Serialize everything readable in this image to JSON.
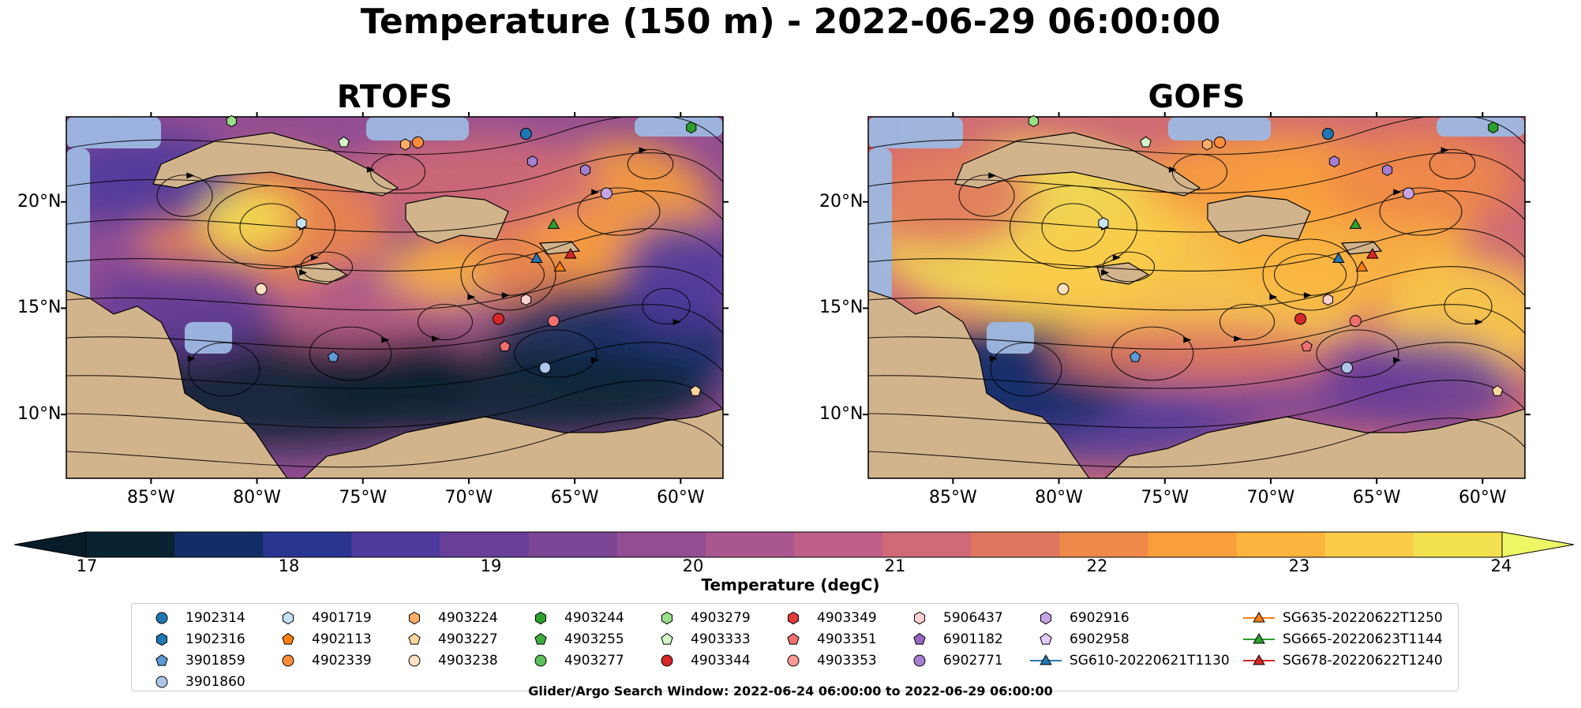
{
  "title": "Temperature (150 m) - 2022-06-29 06:00:00",
  "maps": [
    {
      "id": "rtofs",
      "title": "RTOFS"
    },
    {
      "id": "gofs",
      "title": "GOFS"
    }
  ],
  "axes": {
    "lat_labels": [
      "20°N",
      "15°N",
      "10°N"
    ],
    "lon_labels": [
      "85°W",
      "80°W",
      "75°W",
      "70°W",
      "65°W",
      "60°W"
    ],
    "lon_range": [
      -89,
      -58
    ],
    "lat_range": [
      7,
      24
    ]
  },
  "colorbar": {
    "label": "Temperature (degC)",
    "ticks": [
      "17",
      "18",
      "19",
      "20",
      "21",
      "22",
      "23",
      "24"
    ],
    "range": [
      17,
      24
    ],
    "colors": [
      "#0a2333",
      "#112f66",
      "#2a3590",
      "#4e3a9c",
      "#673e98",
      "#7c4595",
      "#934e93",
      "#a9578e",
      "#bd5f86",
      "#cf6a76",
      "#e0775f",
      "#ef8849",
      "#f89e3c",
      "#fbb43f",
      "#f9cb48",
      "#f3e04f"
    ],
    "extend_low": "#071b28",
    "extend_high": "#eef766"
  },
  "legend": {
    "items": [
      {
        "label": "1902314",
        "marker": "circle",
        "color": "#1f77b4"
      },
      {
        "label": "1902316",
        "marker": "hexagon",
        "color": "#1f77b4"
      },
      {
        "label": "3901859",
        "marker": "pentagon",
        "color": "#5b9bd5"
      },
      {
        "label": "3901860",
        "marker": "circle",
        "color": "#aec7e8"
      },
      {
        "label": "4901719",
        "marker": "hexagon",
        "color": "#c6e2f5"
      },
      {
        "label": "4902113",
        "marker": "pentagon",
        "color": "#ff7f0e"
      },
      {
        "label": "4902339",
        "marker": "circle",
        "color": "#ff8c3a"
      },
      {
        "label": "4903224",
        "marker": "hexagon",
        "color": "#ffad66"
      },
      {
        "label": "4903227",
        "marker": "pentagon",
        "color": "#ffd59e"
      },
      {
        "label": "4903238",
        "marker": "circle",
        "color": "#ffe0c2"
      },
      {
        "label": "4903244",
        "marker": "hexagon",
        "color": "#2ca02c"
      },
      {
        "label": "4903255",
        "marker": "pentagon",
        "color": "#3fae3f"
      },
      {
        "label": "4903277",
        "marker": "circle",
        "color": "#5cc05c"
      },
      {
        "label": "4903279",
        "marker": "hexagon",
        "color": "#98df8a"
      },
      {
        "label": "4903333",
        "marker": "pentagon",
        "color": "#d4f5c8"
      },
      {
        "label": "4903344",
        "marker": "circle",
        "color": "#d62728"
      },
      {
        "label": "4903349",
        "marker": "hexagon",
        "color": "#e03c3c"
      },
      {
        "label": "4903351",
        "marker": "pentagon",
        "color": "#f07070"
      },
      {
        "label": "4903353",
        "marker": "circle",
        "color": "#ff9896"
      },
      {
        "label": "5906437",
        "marker": "hexagon",
        "color": "#ffd0d0"
      },
      {
        "label": "6901182",
        "marker": "pentagon",
        "color": "#9467bd"
      },
      {
        "label": "6902771",
        "marker": "circle",
        "color": "#a57fd0"
      },
      {
        "label": "6902916",
        "marker": "hexagon",
        "color": "#c5a5e5"
      },
      {
        "label": "6902958",
        "marker": "pentagon",
        "color": "#e2cdf7"
      },
      {
        "label": "SG610-20220621T1130",
        "marker": "triangle-line",
        "color": "#1f77b4"
      },
      {
        "label": "SG635-20220622T1250",
        "marker": "triangle-line",
        "color": "#ff7f0e"
      },
      {
        "label": "SG665-20220623T1144",
        "marker": "triangle-line",
        "color": "#2ca02c"
      },
      {
        "label": "SG678-20220622T1240",
        "marker": "triangle-line",
        "color": "#d62728"
      }
    ]
  },
  "search_window": "Glider/Argo Search Window: 2022-06-24 06:00:00 to 2022-06-29 06:00:00",
  "map_colors": {
    "land": "#d2b48c",
    "shallow": "#9db8e2",
    "coast": "#000000",
    "rivers": "#9fb4cc"
  },
  "markers": {
    "argo_lonlat": [
      {
        "lon": -81.2,
        "lat": 23.8,
        "color": "#98df8a",
        "marker": "hexagon"
      },
      {
        "lon": -75.9,
        "lat": 22.8,
        "color": "#d4f5c8",
        "marker": "pentagon"
      },
      {
        "lon": -73.0,
        "lat": 22.7,
        "color": "#ffad66",
        "marker": "hexagon"
      },
      {
        "lon": -72.4,
        "lat": 22.8,
        "color": "#ff8c3a",
        "marker": "circle"
      },
      {
        "lon": -67.3,
        "lat": 23.2,
        "color": "#1f77b4",
        "marker": "circle"
      },
      {
        "lon": -67.0,
        "lat": 21.9,
        "color": "#a57fd0",
        "marker": "hexagon"
      },
      {
        "lon": -64.5,
        "lat": 21.5,
        "color": "#a57fd0",
        "marker": "hexagon"
      },
      {
        "lon": -63.5,
        "lat": 20.4,
        "color": "#c5a5e5",
        "marker": "circle"
      },
      {
        "lon": -59.5,
        "lat": 23.5,
        "color": "#2ca02c",
        "marker": "hexagon"
      },
      {
        "lon": -77.9,
        "lat": 19.0,
        "color": "#c6e2f5",
        "marker": "hexagon"
      },
      {
        "lon": -79.8,
        "lat": 15.9,
        "color": "#ffe0c2",
        "marker": "circle"
      },
      {
        "lon": -68.6,
        "lat": 14.5,
        "color": "#d62728",
        "marker": "circle"
      },
      {
        "lon": -68.3,
        "lat": 13.2,
        "color": "#f07070",
        "marker": "pentagon"
      },
      {
        "lon": -67.3,
        "lat": 15.4,
        "color": "#ffd0d0",
        "marker": "hexagon"
      },
      {
        "lon": -66.0,
        "lat": 14.4,
        "color": "#f07070",
        "marker": "circle"
      },
      {
        "lon": -66.4,
        "lat": 12.2,
        "color": "#aec7e8",
        "marker": "circle"
      },
      {
        "lon": -76.4,
        "lat": 12.7,
        "color": "#5b9bd5",
        "marker": "pentagon"
      },
      {
        "lon": -59.3,
        "lat": 11.1,
        "color": "#ffd59e",
        "marker": "pentagon"
      }
    ],
    "gliders_lonlat": [
      {
        "lon": -66.0,
        "lat": 18.9,
        "color": "#2ca02c"
      },
      {
        "lon": -66.8,
        "lat": 17.3,
        "color": "#1f77b4"
      },
      {
        "lon": -65.7,
        "lat": 16.9,
        "color": "#ff7f0e"
      },
      {
        "lon": -65.2,
        "lat": 17.5,
        "color": "#d62728"
      }
    ]
  }
}
